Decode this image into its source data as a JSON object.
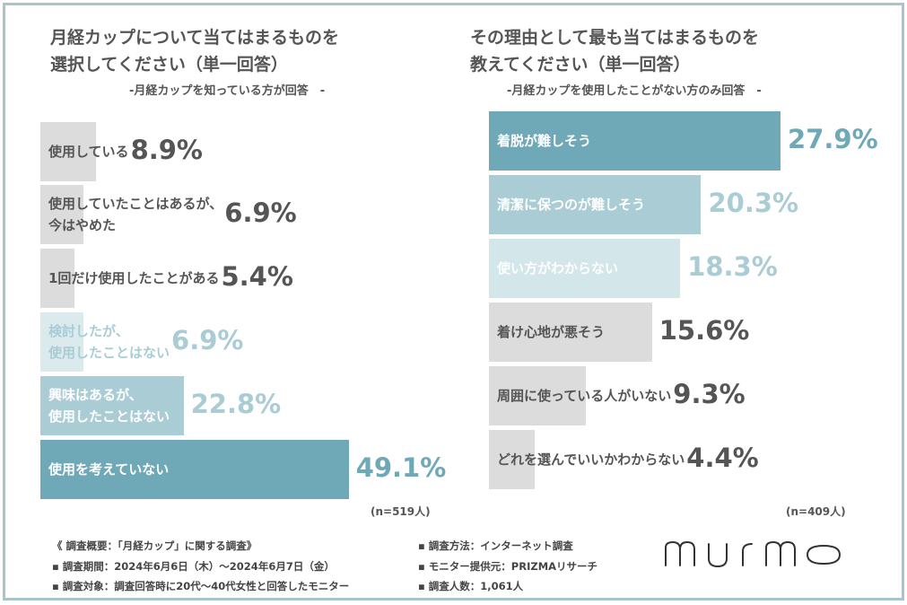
{
  "chart_data": [
    {
      "type": "bar",
      "orientation": "horizontal",
      "title": "月経カップについて当てはまるものを\n選択してください（単一回答）",
      "subtitle": "-月経カップを知っている方が回答　-",
      "categories": [
        "使用している",
        "使用していたことはあるが、\n今はやめた",
        "1回だけ使用したことがある",
        "検討したが、\n使用したことはない",
        "興味はあるが、\n使用したことはない",
        "使用を考えていない"
      ],
      "values": [
        8.9,
        6.9,
        5.4,
        6.9,
        22.8,
        49.1
      ],
      "value_labels": [
        "8.9%",
        "6.9%",
        "5.4%",
        "6.9%",
        "22.8%",
        "49.1%"
      ],
      "bar_colors": [
        "#dcdcdc",
        "#dcdcdc",
        "#dcdcdc",
        "#dbeaed",
        "#aacdd5",
        "#6fa8b6"
      ],
      "label_colors": [
        "#555555",
        "#555555",
        "#555555",
        "#a9ccd5",
        "#ffffff",
        "#ffffff"
      ],
      "value_colors": [
        "#555555",
        "#555555",
        "#555555",
        "#a9ccd5",
        "#a9ccd5",
        "#6fa8b6"
      ],
      "n_label": "(n=519人)"
    },
    {
      "type": "bar",
      "orientation": "horizontal",
      "title": "その理由として最も当てはまるものを\n教えてください（単一回答）",
      "subtitle": "-月経カップを使用したことがない方のみ回答　-",
      "categories": [
        "着脱が難しそう",
        "清潔に保つのが難しそう",
        "使い方がわからない",
        "着け心地が悪そう",
        "周囲に使っている人がいない",
        "どれを選んでいいかわからない"
      ],
      "values": [
        27.9,
        20.3,
        18.3,
        15.6,
        9.3,
        4.4
      ],
      "value_labels": [
        "27.9%",
        "20.3%",
        "18.3%",
        "15.6%",
        "9.3%",
        "4.4%"
      ],
      "bar_colors": [
        "#6fa8b6",
        "#aacdd5",
        "#d3e6ea",
        "#dcdcdc",
        "#dcdcdc",
        "#dcdcdc"
      ],
      "label_colors": [
        "#ffffff",
        "#ffffff",
        "#ffffff",
        "#555555",
        "#555555",
        "#555555"
      ],
      "value_colors": [
        "#6fa8b6",
        "#aacdd5",
        "#aacdd5",
        "#555555",
        "#555555",
        "#555555"
      ],
      "n_label": "(n=409人)"
    }
  ],
  "footer": {
    "overview": "《 調査概要：「月経カップ」に関する調査》",
    "period": "▪ 調査期間：2024年6月6日（木）～2024年6月7日（金）",
    "target": "▪ 調査対象：調査回答時に20代～40代女性と回答したモニター",
    "method": "▪ 調査方法：インターネット調査",
    "provider": "▪ モニター提供元：PRIZMAリサーチ",
    "count": "▪ 調査人数：1,061人"
  },
  "logo": "murmo"
}
